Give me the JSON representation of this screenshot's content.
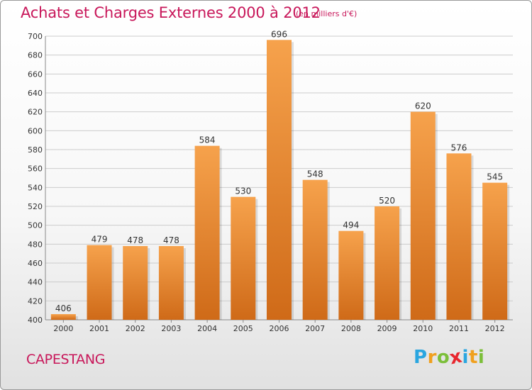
{
  "title": "Achats et Charges Externes 2000 à 2012",
  "subtitle": "(en milliers d'€)",
  "place": "CAPESTANG",
  "logo": {
    "letters": [
      "P",
      "r",
      "o",
      "x",
      "i",
      "t",
      "i"
    ],
    "colors": [
      "#2aa6e0",
      "#f0a01e",
      "#7cbf3a",
      "#e8262e",
      "#2aa6e0",
      "#f0a01e",
      "#7cbf3a"
    ]
  },
  "colors": {
    "bar_top": "#f6a24c",
    "bar_bottom": "#cf6a18",
    "grid": "#cccccc",
    "accent": "#c8175a"
  },
  "chart_data": {
    "type": "bar",
    "categories": [
      "2000",
      "2001",
      "2002",
      "2003",
      "2004",
      "2005",
      "2006",
      "2007",
      "2008",
      "2009",
      "2010",
      "2011",
      "2012"
    ],
    "values": [
      406,
      479,
      478,
      478,
      584,
      530,
      696,
      548,
      494,
      520,
      620,
      576,
      545
    ],
    "data_labels": [
      "406",
      "479",
      "478",
      "478",
      "584",
      "530",
      "696",
      "548",
      "494",
      "520",
      "620",
      "576",
      "545"
    ],
    "yticks": [
      "400",
      "420",
      "440",
      "460",
      "480",
      "500",
      "520",
      "540",
      "560",
      "580",
      "600",
      "620",
      "640",
      "660",
      "680",
      "700"
    ],
    "ylim": [
      400,
      700
    ],
    "grid": true
  }
}
